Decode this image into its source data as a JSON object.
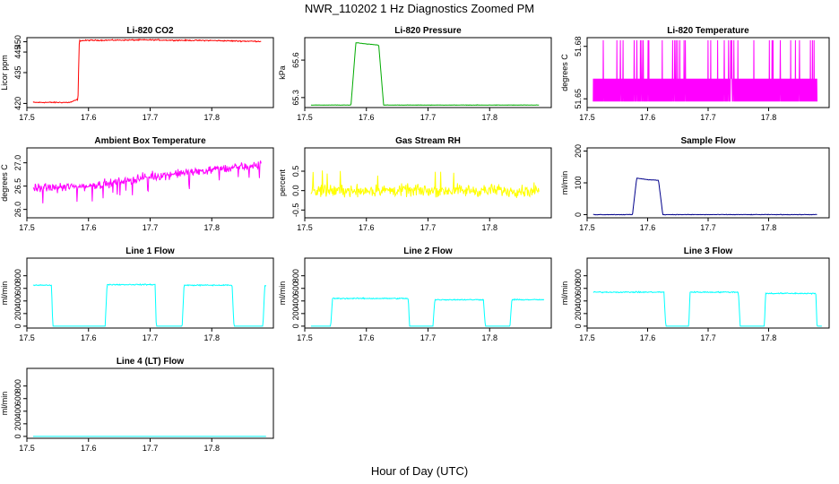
{
  "page": {
    "title": "NWR_110202  1 Hz Diagnostics Zoomed PM",
    "xlabel": "Hour of Day (UTC)"
  },
  "chart_data": [
    {
      "type": "line",
      "title": "Li-820 CO2",
      "ylabel": "Licor ppm",
      "color": "#ff0000",
      "xlim": [
        17.5,
        17.9
      ],
      "ylim": [
        418,
        452
      ],
      "xticks": [
        "17.5",
        "17.6",
        "17.7",
        "17.8"
      ],
      "yticks": [
        "420",
        "435",
        "445",
        "450"
      ],
      "x": [
        17.51,
        17.57,
        17.583,
        17.585,
        17.6,
        17.65,
        17.7,
        17.75,
        17.8,
        17.85,
        17.88
      ],
      "y": [
        420.5,
        420.5,
        422,
        450.5,
        450.7,
        450.8,
        450.9,
        450.7,
        450.6,
        450.3,
        450.2
      ]
    },
    {
      "type": "line",
      "title": "Li-820 Pressure",
      "ylabel": "kPa",
      "color": "#00aa00",
      "xlim": [
        17.5,
        17.9
      ],
      "ylim": [
        65.22,
        65.78
      ],
      "xticks": [
        "17.5",
        "17.6",
        "17.7",
        "17.8"
      ],
      "yticks": [
        "65.3",
        "65.6"
      ],
      "x": [
        17.51,
        17.575,
        17.583,
        17.6,
        17.62,
        17.628,
        17.7,
        17.88
      ],
      "y": [
        65.24,
        65.24,
        65.74,
        65.73,
        65.72,
        65.24,
        65.24,
        65.24
      ]
    },
    {
      "type": "line",
      "title": "Li-820 Temperature",
      "ylabel": "degrees C",
      "color": "#ff00ff",
      "xlim": [
        17.5,
        17.9
      ],
      "ylim": [
        51.645,
        51.685
      ],
      "xticks": [
        "17.5",
        "17.6",
        "17.7",
        "17.8"
      ],
      "yticks": [
        "51.65",
        "51.68"
      ],
      "x": [
        17.51,
        17.88
      ],
      "y_low": [
        51.6485,
        51.6485
      ],
      "y_high": [
        51.6615,
        51.6615
      ],
      "y_spike": 51.6835
    },
    {
      "type": "line",
      "title": "Ambient Box Temperature",
      "ylabel": "degrees C",
      "color": "#ff00ff",
      "xlim": [
        17.5,
        17.9
      ],
      "ylim": [
        25.82,
        27.32
      ],
      "xticks": [
        "17.5",
        "17.6",
        "17.7",
        "17.8"
      ],
      "yticks": [
        "26.0",
        "26.5",
        "27.0"
      ],
      "x": [
        17.51,
        17.6,
        17.7,
        17.8,
        17.88
      ],
      "y": [
        26.45,
        26.5,
        26.7,
        26.85,
        26.95
      ]
    },
    {
      "type": "line",
      "title": "Gas Stream RH",
      "ylabel": "percent",
      "color": "#ffff00",
      "xlim": [
        17.5,
        17.9
      ],
      "ylim": [
        -0.7,
        1.1
      ],
      "xticks": [
        "17.5",
        "17.6",
        "17.7",
        "17.8"
      ],
      "yticks": [
        "-0.5",
        "0.0",
        "0.5"
      ],
      "x": [
        17.51,
        17.88
      ],
      "y": [
        0.0,
        0.0
      ]
    },
    {
      "type": "line",
      "title": "Sample Flow",
      "ylabel": "ml/min",
      "color": "#00008b",
      "xlim": [
        17.5,
        17.9
      ],
      "ylim": [
        -10,
        210
      ],
      "xticks": [
        "17.5",
        "17.6",
        "17.7",
        "17.8"
      ],
      "yticks": [
        "0",
        "100",
        "200"
      ],
      "x": [
        17.51,
        17.575,
        17.582,
        17.6,
        17.618,
        17.625,
        17.7,
        17.88
      ],
      "y": [
        0,
        0,
        115,
        110,
        108,
        0,
        0,
        0
      ]
    },
    {
      "type": "line",
      "title": "Line 1 Flow",
      "ylabel": "ml/min",
      "color": "#00ffff",
      "xlim": [
        17.5,
        17.9
      ],
      "ylim": [
        -30,
        1080
      ],
      "xticks": [
        "17.5",
        "17.6",
        "17.7",
        "17.8"
      ],
      "yticks": [
        "0",
        "200",
        "400",
        "600",
        "800"
      ],
      "x": [
        17.51,
        17.54,
        17.542,
        17.627,
        17.63,
        17.708,
        17.71,
        17.752,
        17.755,
        17.833,
        17.836,
        17.883,
        17.886,
        17.888
      ],
      "y": [
        650,
        650,
        0,
        0,
        660,
        660,
        0,
        0,
        650,
        650,
        0,
        0,
        640,
        640
      ]
    },
    {
      "type": "line",
      "title": "Line 2 Flow",
      "ylabel": "ml/min",
      "color": "#00ffff",
      "xlim": [
        17.5,
        17.9
      ],
      "ylim": [
        -30,
        1080
      ],
      "xticks": [
        "17.5",
        "17.6",
        "17.7",
        "17.8"
      ],
      "yticks": [
        "0",
        "200",
        "400",
        "600",
        "800"
      ],
      "x": [
        17.51,
        17.542,
        17.545,
        17.668,
        17.67,
        17.708,
        17.711,
        17.79,
        17.793,
        17.833,
        17.836,
        17.888
      ],
      "y": [
        0,
        0,
        440,
        440,
        0,
        0,
        420,
        420,
        0,
        0,
        420,
        420
      ]
    },
    {
      "type": "line",
      "title": "Line 3 Flow",
      "ylabel": "ml/min",
      "color": "#00ffff",
      "xlim": [
        17.5,
        17.9
      ],
      "ylim": [
        -30,
        1080
      ],
      "xticks": [
        "17.5",
        "17.6",
        "17.7",
        "17.8"
      ],
      "yticks": [
        "0",
        "200",
        "400",
        "600",
        "800"
      ],
      "x": [
        17.51,
        17.627,
        17.63,
        17.668,
        17.67,
        17.75,
        17.753,
        17.793,
        17.795,
        17.878,
        17.88,
        17.888
      ],
      "y": [
        540,
        540,
        0,
        0,
        540,
        540,
        0,
        0,
        520,
        520,
        0,
        0
      ]
    },
    {
      "type": "line",
      "title": "Line 4 (LT) Flow",
      "ylabel": "ml/min",
      "color": "#00ffff",
      "xlim": [
        17.5,
        17.9
      ],
      "ylim": [
        -30,
        1080
      ],
      "xticks": [
        "17.5",
        "17.6",
        "17.7",
        "17.8"
      ],
      "yticks": [
        "0",
        "200",
        "400",
        "600",
        "800"
      ],
      "x": [
        17.51,
        17.888
      ],
      "y": [
        0,
        0
      ]
    }
  ]
}
